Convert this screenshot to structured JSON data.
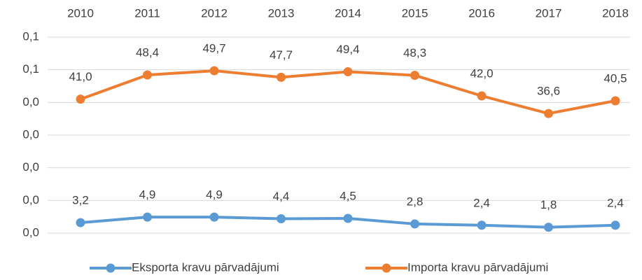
{
  "chart_data": {
    "type": "line",
    "categories": [
      "2010",
      "2011",
      "2012",
      "2013",
      "2014",
      "2015",
      "2016",
      "2017",
      "2018"
    ],
    "series": [
      {
        "name": "Eksporta kravu pārvadājumi",
        "color": "#5b9bd5",
        "values": [
          0.0032,
          0.0049,
          0.0049,
          0.0044,
          0.0045,
          0.0028,
          0.0024,
          0.0018,
          0.0024
        ],
        "value_labels": [
          "3,2",
          "4,9",
          "4,9",
          "4,4",
          "4,5",
          "2,8",
          "2,4",
          "1,8",
          "2,4"
        ]
      },
      {
        "name": "Importa kravu pārvadājumi",
        "color": "#ed7d31",
        "values": [
          0.041,
          0.0484,
          0.0497,
          0.0477,
          0.0494,
          0.0483,
          0.042,
          0.0366,
          0.0405
        ],
        "value_labels": [
          "41,0",
          "48,4",
          "49,7",
          "47,7",
          "49,4",
          "48,3",
          "42,0",
          "36,6",
          "40,5"
        ]
      }
    ],
    "ylim": [
      0,
      0.06
    ],
    "yticks": [
      {
        "value": 0,
        "label": "0,0"
      },
      {
        "value": 0.01,
        "label": "0,0"
      },
      {
        "value": 0.02,
        "label": "0,0"
      },
      {
        "value": 0.03,
        "label": "0,0"
      },
      {
        "value": 0.04,
        "label": "0,0"
      },
      {
        "value": 0.05,
        "label": "0,1"
      },
      {
        "value": 0.06,
        "label": "0,1"
      }
    ],
    "grid": true,
    "legend": "bottom"
  }
}
